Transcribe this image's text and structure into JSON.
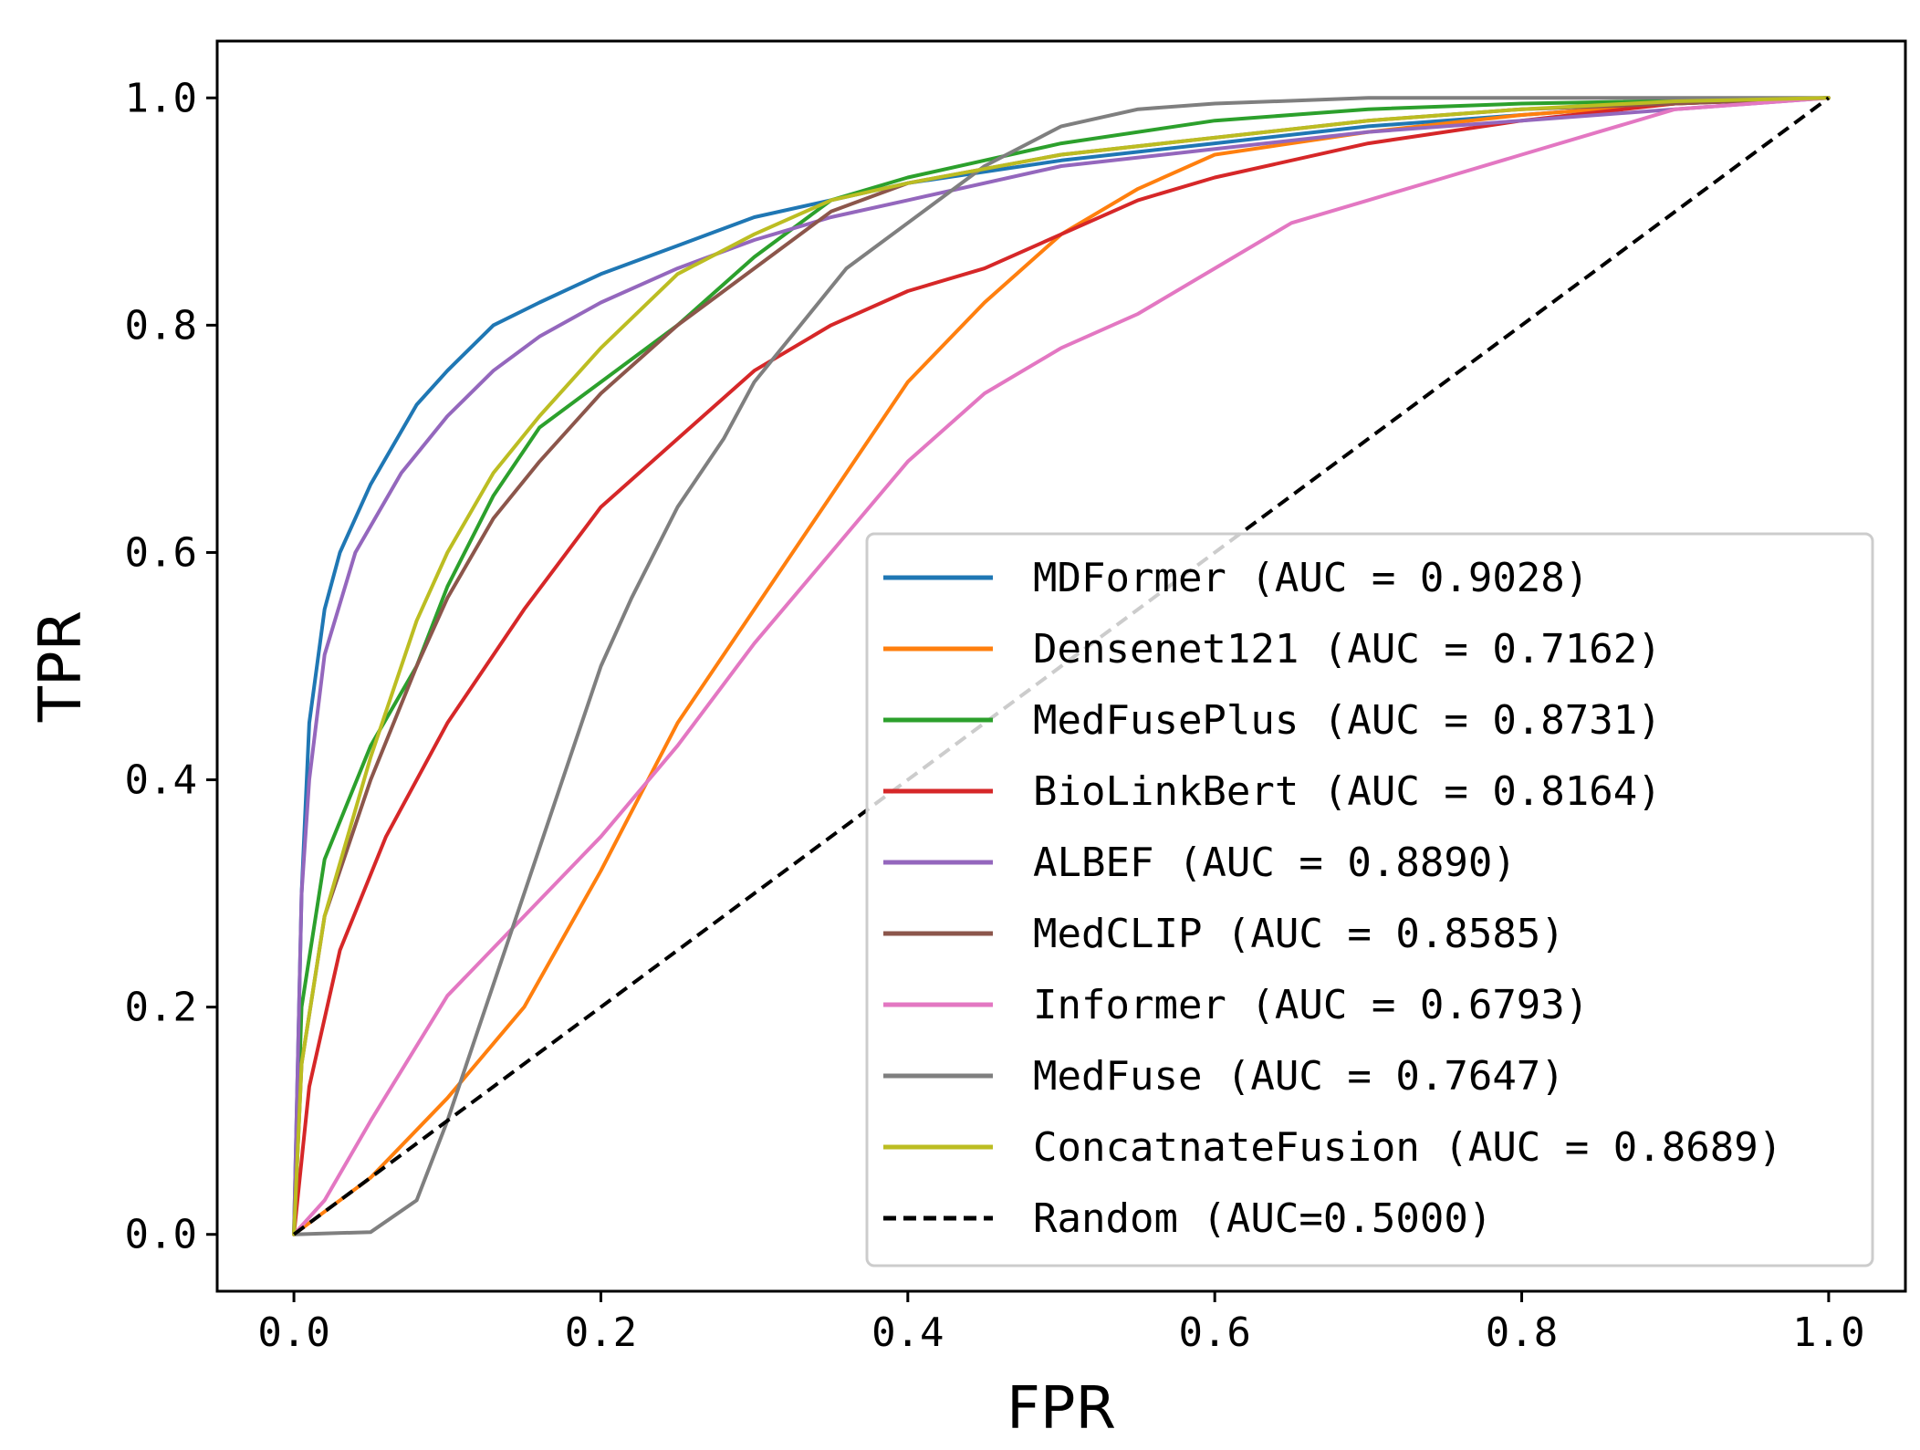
{
  "chart_data": {
    "type": "line",
    "title": "",
    "xlabel": "FPR",
    "ylabel": "TPR",
    "xlim": [
      -0.05,
      1.05
    ],
    "ylim": [
      -0.05,
      1.05
    ],
    "xticks": [
      0.0,
      0.2,
      0.4,
      0.6,
      0.8,
      1.0
    ],
    "yticks": [
      0.0,
      0.2,
      0.4,
      0.6,
      0.8,
      1.0
    ],
    "xtick_labels": [
      "0.0",
      "0.2",
      "0.4",
      "0.6",
      "0.8",
      "1.0"
    ],
    "ytick_labels": [
      "0.0",
      "0.2",
      "0.4",
      "0.6",
      "0.8",
      "1.0"
    ],
    "grid": false,
    "legend_position": "lower-right",
    "series": [
      {
        "name": "MDFormer (AUC = 0.9028)",
        "color": "#1f77b4",
        "style": "solid",
        "points": [
          [
            0,
            0
          ],
          [
            0.005,
            0.3
          ],
          [
            0.01,
            0.45
          ],
          [
            0.02,
            0.55
          ],
          [
            0.03,
            0.6
          ],
          [
            0.05,
            0.66
          ],
          [
            0.08,
            0.73
          ],
          [
            0.1,
            0.76
          ],
          [
            0.13,
            0.8
          ],
          [
            0.16,
            0.82
          ],
          [
            0.2,
            0.845
          ],
          [
            0.25,
            0.87
          ],
          [
            0.3,
            0.895
          ],
          [
            0.4,
            0.925
          ],
          [
            0.5,
            0.945
          ],
          [
            0.6,
            0.96
          ],
          [
            0.7,
            0.975
          ],
          [
            0.8,
            0.985
          ],
          [
            0.9,
            0.995
          ],
          [
            1,
            1
          ]
        ]
      },
      {
        "name": "Densenet121 (AUC = 0.7162)",
        "color": "#ff7f0e",
        "style": "solid",
        "points": [
          [
            0,
            0
          ],
          [
            0.02,
            0.02
          ],
          [
            0.05,
            0.05
          ],
          [
            0.1,
            0.12
          ],
          [
            0.15,
            0.2
          ],
          [
            0.2,
            0.32
          ],
          [
            0.25,
            0.45
          ],
          [
            0.3,
            0.55
          ],
          [
            0.35,
            0.65
          ],
          [
            0.4,
            0.75
          ],
          [
            0.45,
            0.82
          ],
          [
            0.5,
            0.88
          ],
          [
            0.55,
            0.92
          ],
          [
            0.6,
            0.95
          ],
          [
            0.7,
            0.97
          ],
          [
            0.8,
            0.985
          ],
          [
            0.9,
            0.995
          ],
          [
            1,
            1
          ]
        ]
      },
      {
        "name": "MedFusePlus (AUC = 0.8731)",
        "color": "#2ca02c",
        "style": "solid",
        "points": [
          [
            0,
            0
          ],
          [
            0.005,
            0.2
          ],
          [
            0.02,
            0.33
          ],
          [
            0.05,
            0.43
          ],
          [
            0.08,
            0.5
          ],
          [
            0.1,
            0.57
          ],
          [
            0.13,
            0.65
          ],
          [
            0.16,
            0.71
          ],
          [
            0.2,
            0.75
          ],
          [
            0.25,
            0.8
          ],
          [
            0.3,
            0.86
          ],
          [
            0.35,
            0.91
          ],
          [
            0.4,
            0.93
          ],
          [
            0.45,
            0.945
          ],
          [
            0.5,
            0.96
          ],
          [
            0.6,
            0.98
          ],
          [
            0.7,
            0.99
          ],
          [
            0.8,
            0.995
          ],
          [
            1,
            1
          ]
        ]
      },
      {
        "name": "BioLinkBert (AUC = 0.8164)",
        "color": "#d62728",
        "style": "solid",
        "points": [
          [
            0,
            0
          ],
          [
            0.01,
            0.13
          ],
          [
            0.03,
            0.25
          ],
          [
            0.06,
            0.35
          ],
          [
            0.1,
            0.45
          ],
          [
            0.15,
            0.55
          ],
          [
            0.2,
            0.64
          ],
          [
            0.25,
            0.7
          ],
          [
            0.3,
            0.76
          ],
          [
            0.35,
            0.8
          ],
          [
            0.4,
            0.83
          ],
          [
            0.45,
            0.85
          ],
          [
            0.5,
            0.88
          ],
          [
            0.55,
            0.91
          ],
          [
            0.6,
            0.93
          ],
          [
            0.7,
            0.96
          ],
          [
            0.8,
            0.98
          ],
          [
            0.9,
            0.995
          ],
          [
            1,
            1
          ]
        ]
      },
      {
        "name": "ALBEF (AUC = 0.8890)",
        "color": "#9467bd",
        "style": "solid",
        "points": [
          [
            0,
            0
          ],
          [
            0.005,
            0.3
          ],
          [
            0.01,
            0.4
          ],
          [
            0.02,
            0.51
          ],
          [
            0.04,
            0.6
          ],
          [
            0.07,
            0.67
          ],
          [
            0.1,
            0.72
          ],
          [
            0.13,
            0.76
          ],
          [
            0.16,
            0.79
          ],
          [
            0.2,
            0.82
          ],
          [
            0.25,
            0.85
          ],
          [
            0.3,
            0.875
          ],
          [
            0.35,
            0.895
          ],
          [
            0.4,
            0.91
          ],
          [
            0.5,
            0.94
          ],
          [
            0.6,
            0.955
          ],
          [
            0.7,
            0.97
          ],
          [
            0.8,
            0.98
          ],
          [
            0.9,
            0.99
          ],
          [
            1,
            1
          ]
        ]
      },
      {
        "name": "MedCLIP (AUC = 0.8585)",
        "color": "#8c564b",
        "style": "solid",
        "points": [
          [
            0,
            0
          ],
          [
            0.005,
            0.15
          ],
          [
            0.02,
            0.28
          ],
          [
            0.05,
            0.4
          ],
          [
            0.08,
            0.5
          ],
          [
            0.1,
            0.56
          ],
          [
            0.13,
            0.63
          ],
          [
            0.16,
            0.68
          ],
          [
            0.2,
            0.74
          ],
          [
            0.25,
            0.8
          ],
          [
            0.3,
            0.85
          ],
          [
            0.35,
            0.9
          ],
          [
            0.4,
            0.925
          ],
          [
            0.5,
            0.95
          ],
          [
            0.6,
            0.965
          ],
          [
            0.7,
            0.98
          ],
          [
            0.8,
            0.99
          ],
          [
            0.9,
            0.995
          ],
          [
            1,
            1
          ]
        ]
      },
      {
        "name": "Informer (AUC = 0.6793)",
        "color": "#e377c2",
        "style": "solid",
        "points": [
          [
            0,
            0
          ],
          [
            0.02,
            0.03
          ],
          [
            0.05,
            0.1
          ],
          [
            0.1,
            0.21
          ],
          [
            0.15,
            0.28
          ],
          [
            0.2,
            0.35
          ],
          [
            0.25,
            0.43
          ],
          [
            0.3,
            0.52
          ],
          [
            0.35,
            0.6
          ],
          [
            0.4,
            0.68
          ],
          [
            0.45,
            0.74
          ],
          [
            0.5,
            0.78
          ],
          [
            0.55,
            0.81
          ],
          [
            0.6,
            0.85
          ],
          [
            0.65,
            0.89
          ],
          [
            0.7,
            0.91
          ],
          [
            0.75,
            0.93
          ],
          [
            0.8,
            0.95
          ],
          [
            0.85,
            0.97
          ],
          [
            0.9,
            0.99
          ],
          [
            1,
            1
          ]
        ]
      },
      {
        "name": "MedFuse (AUC = 0.7647)",
        "color": "#7f7f7f",
        "style": "solid",
        "points": [
          [
            0,
            0
          ],
          [
            0.05,
            0.002
          ],
          [
            0.08,
            0.03
          ],
          [
            0.1,
            0.1
          ],
          [
            0.12,
            0.18
          ],
          [
            0.15,
            0.3
          ],
          [
            0.18,
            0.42
          ],
          [
            0.2,
            0.5
          ],
          [
            0.22,
            0.56
          ],
          [
            0.25,
            0.64
          ],
          [
            0.28,
            0.7
          ],
          [
            0.3,
            0.75
          ],
          [
            0.33,
            0.8
          ],
          [
            0.36,
            0.85
          ],
          [
            0.4,
            0.89
          ],
          [
            0.45,
            0.94
          ],
          [
            0.5,
            0.975
          ],
          [
            0.55,
            0.99
          ],
          [
            0.6,
            0.995
          ],
          [
            0.7,
            1
          ],
          [
            1,
            1
          ]
        ]
      },
      {
        "name": "ConcatnateFusion (AUC = 0.8689)",
        "color": "#bcbd22",
        "style": "solid",
        "points": [
          [
            0,
            0
          ],
          [
            0.005,
            0.15
          ],
          [
            0.02,
            0.28
          ],
          [
            0.05,
            0.42
          ],
          [
            0.08,
            0.54
          ],
          [
            0.1,
            0.6
          ],
          [
            0.13,
            0.67
          ],
          [
            0.16,
            0.72
          ],
          [
            0.2,
            0.78
          ],
          [
            0.25,
            0.845
          ],
          [
            0.3,
            0.88
          ],
          [
            0.35,
            0.91
          ],
          [
            0.4,
            0.925
          ],
          [
            0.5,
            0.95
          ],
          [
            0.6,
            0.965
          ],
          [
            0.7,
            0.98
          ],
          [
            0.8,
            0.99
          ],
          [
            0.9,
            0.997
          ],
          [
            1,
            1
          ]
        ]
      },
      {
        "name": "Random (AUC=0.5000)",
        "color": "#000000",
        "style": "dashed",
        "points": [
          [
            0,
            0
          ],
          [
            1,
            1
          ]
        ]
      }
    ]
  }
}
